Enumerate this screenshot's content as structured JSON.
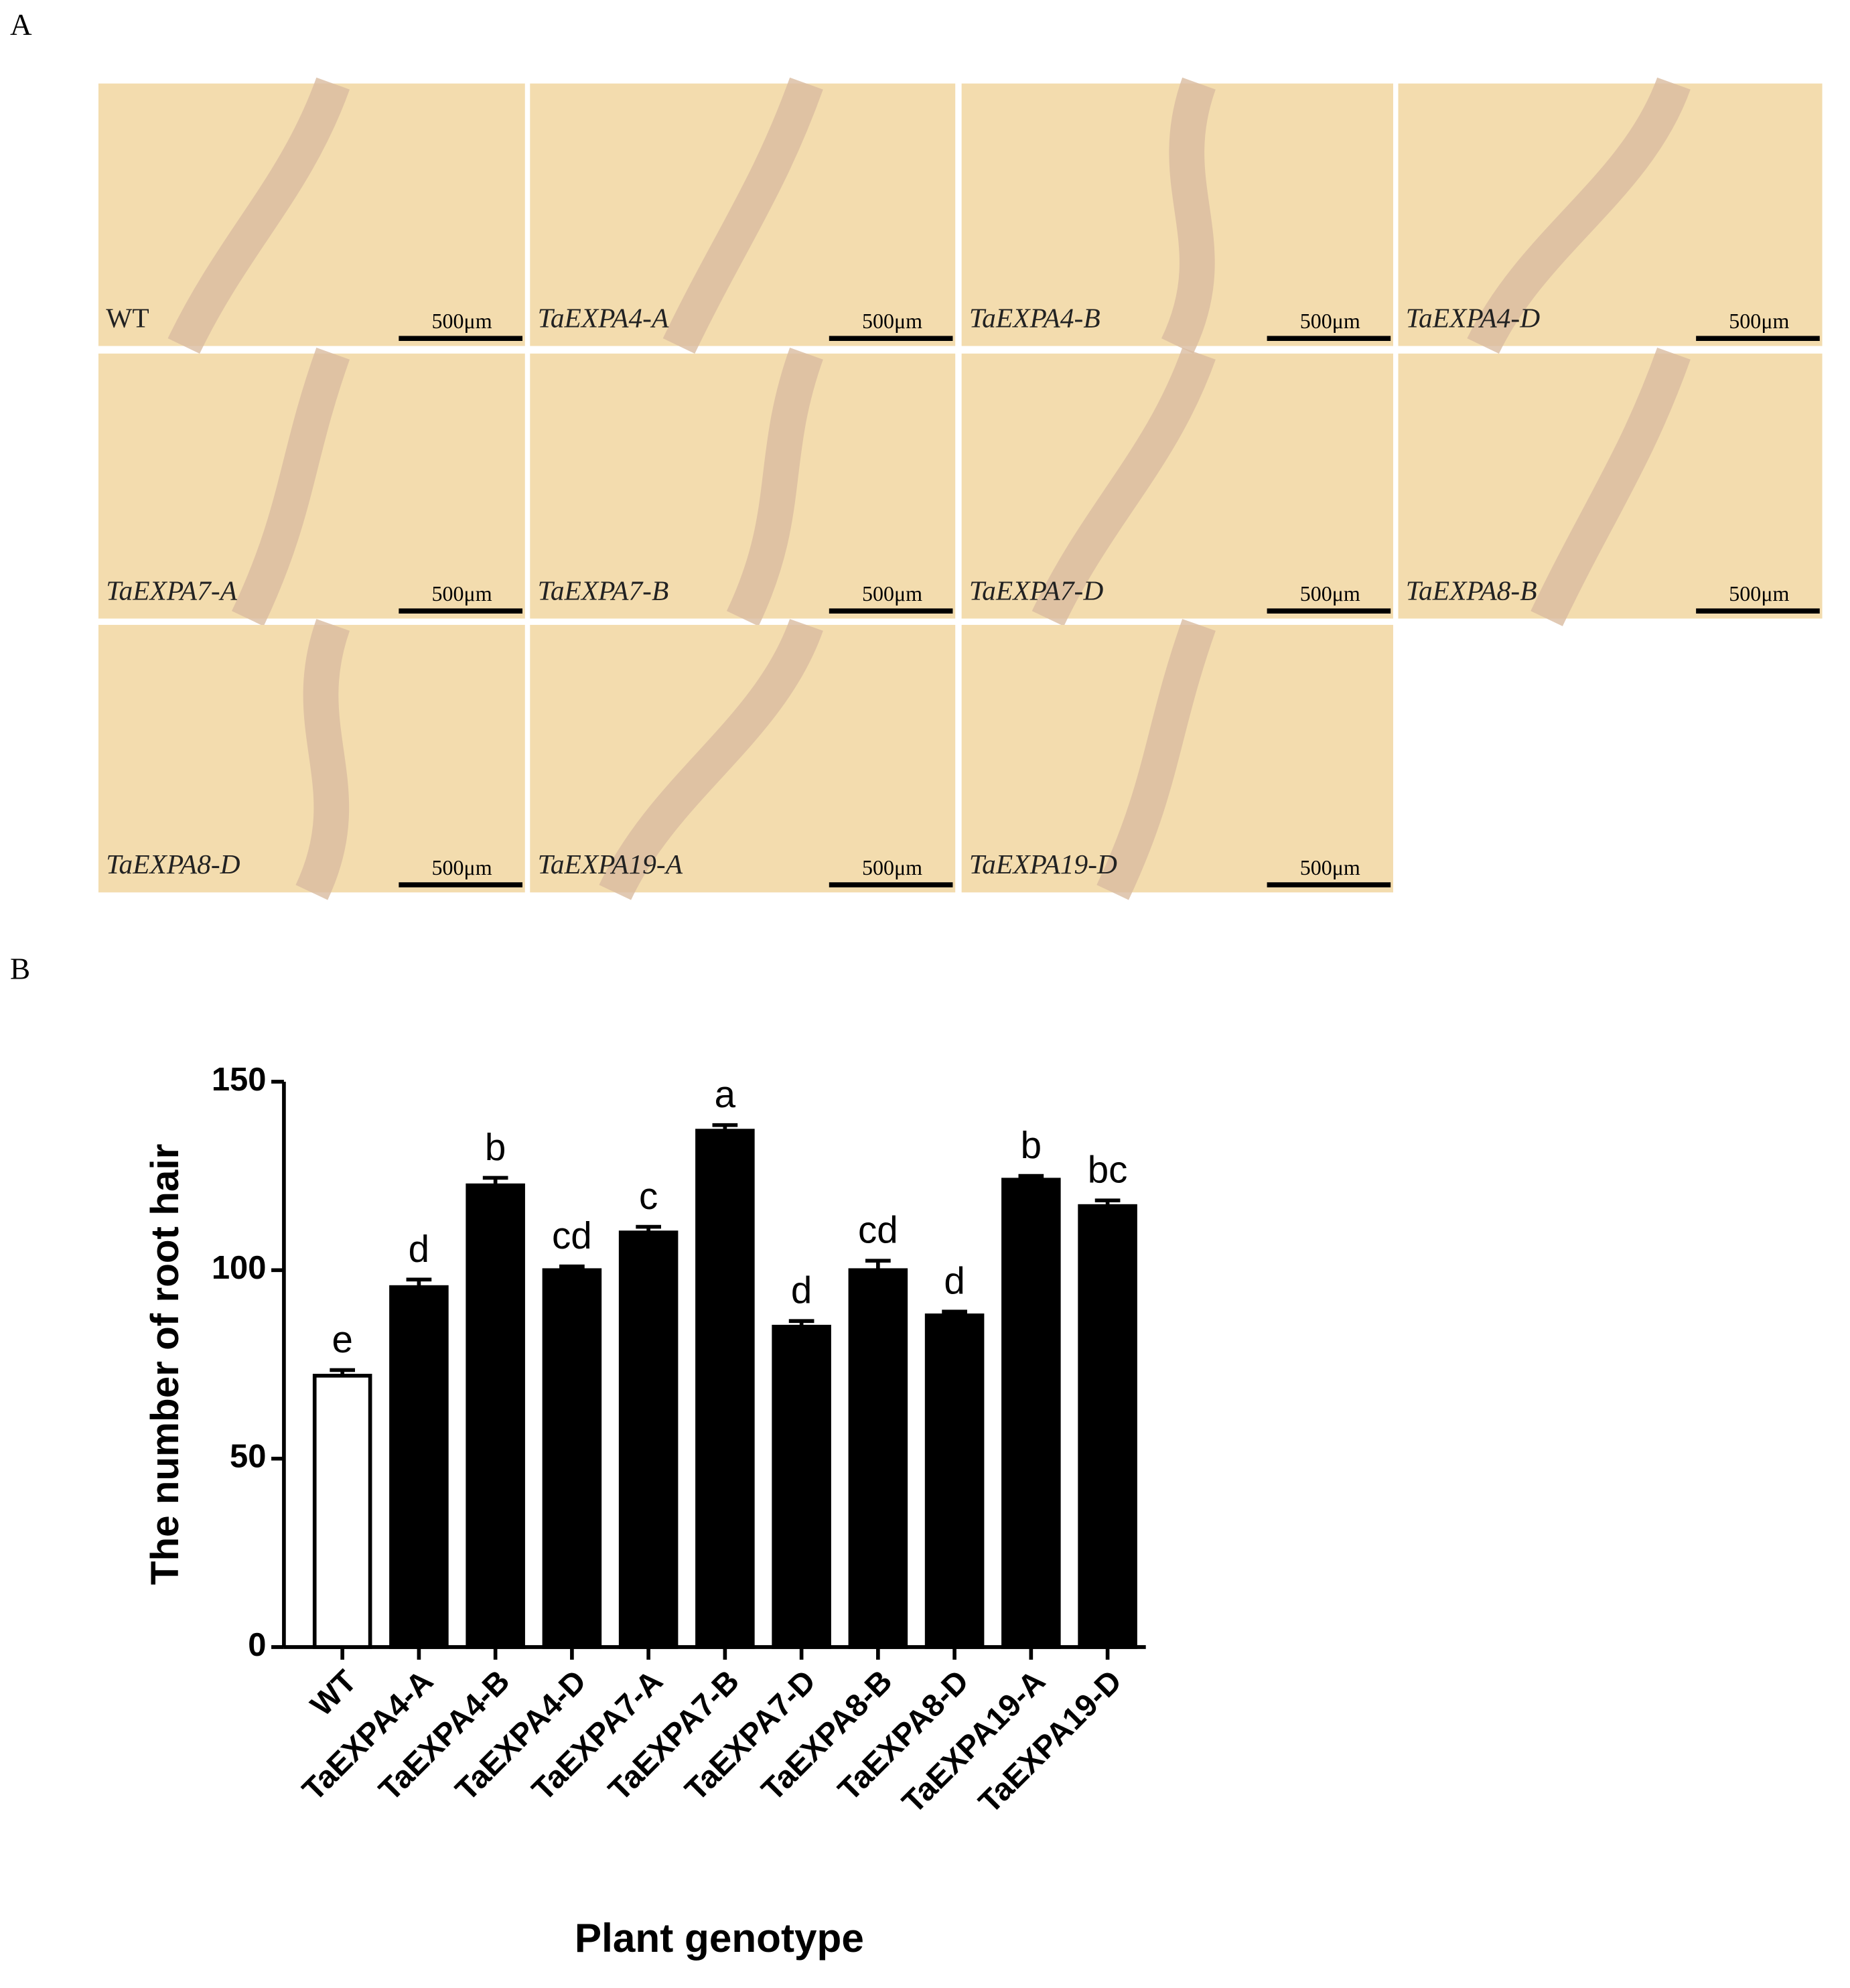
{
  "panel_a": {
    "label": "A",
    "images": [
      {
        "label": "WT",
        "italic": false,
        "scale_bar": "500μm"
      },
      {
        "label": "TaEXPA4-A",
        "italic": true,
        "scale_bar": "500μm"
      },
      {
        "label": "TaEXPA4-B",
        "italic": true,
        "scale_bar": "500μm"
      },
      {
        "label": "TaEXPA4-D",
        "italic": true,
        "scale_bar": "500μm"
      },
      {
        "label": "TaEXPA7-A",
        "italic": true,
        "scale_bar": "500μm"
      },
      {
        "label": "TaEXPA7-B",
        "italic": true,
        "scale_bar": "500μm"
      },
      {
        "label": "TaEXPA7-D",
        "italic": true,
        "scale_bar": "500μm"
      },
      {
        "label": "TaEXPA8-B",
        "italic": true,
        "scale_bar": "500μm"
      },
      {
        "label": "TaEXPA8-D",
        "italic": true,
        "scale_bar": "500μm"
      },
      {
        "label": "TaEXPA19-A",
        "italic": true,
        "scale_bar": "500μm"
      },
      {
        "label": "TaEXPA19-D",
        "italic": true,
        "scale_bar": "500μm"
      }
    ]
  },
  "panel_b": {
    "label": "B"
  },
  "chart_data": {
    "type": "bar",
    "y_label": "The number of root hair",
    "x_label": "Plant genotype",
    "categories": [
      "WT",
      "TaEXPA4-A",
      "TaEXPA4-B",
      "TaEXPA4-D",
      "TaEXPA7-A",
      "TaEXPA7-B",
      "TaEXPA7-D",
      "TaEXPA8-B",
      "TaEXPA8-D",
      "TaEXPA19-A",
      "TaEXPA19-D"
    ],
    "values": [
      72,
      95.5,
      122.5,
      100,
      110,
      137,
      85,
      100,
      88,
      124,
      117
    ],
    "errors": [
      1.5,
      2,
      2,
      1,
      1.5,
      1.5,
      1.5,
      2.5,
      1,
      1,
      1.5
    ],
    "annotations": [
      "e",
      "d",
      "b",
      "cd",
      "c",
      "a",
      "d",
      "cd",
      "d",
      "b",
      "bc"
    ],
    "colors": [
      "#ffffff",
      "#000000",
      "#000000",
      "#000000",
      "#000000",
      "#000000",
      "#000000",
      "#000000",
      "#000000",
      "#000000",
      "#000000"
    ],
    "ylim": [
      0,
      150
    ],
    "yticks": [
      0,
      50,
      100,
      150
    ]
  }
}
